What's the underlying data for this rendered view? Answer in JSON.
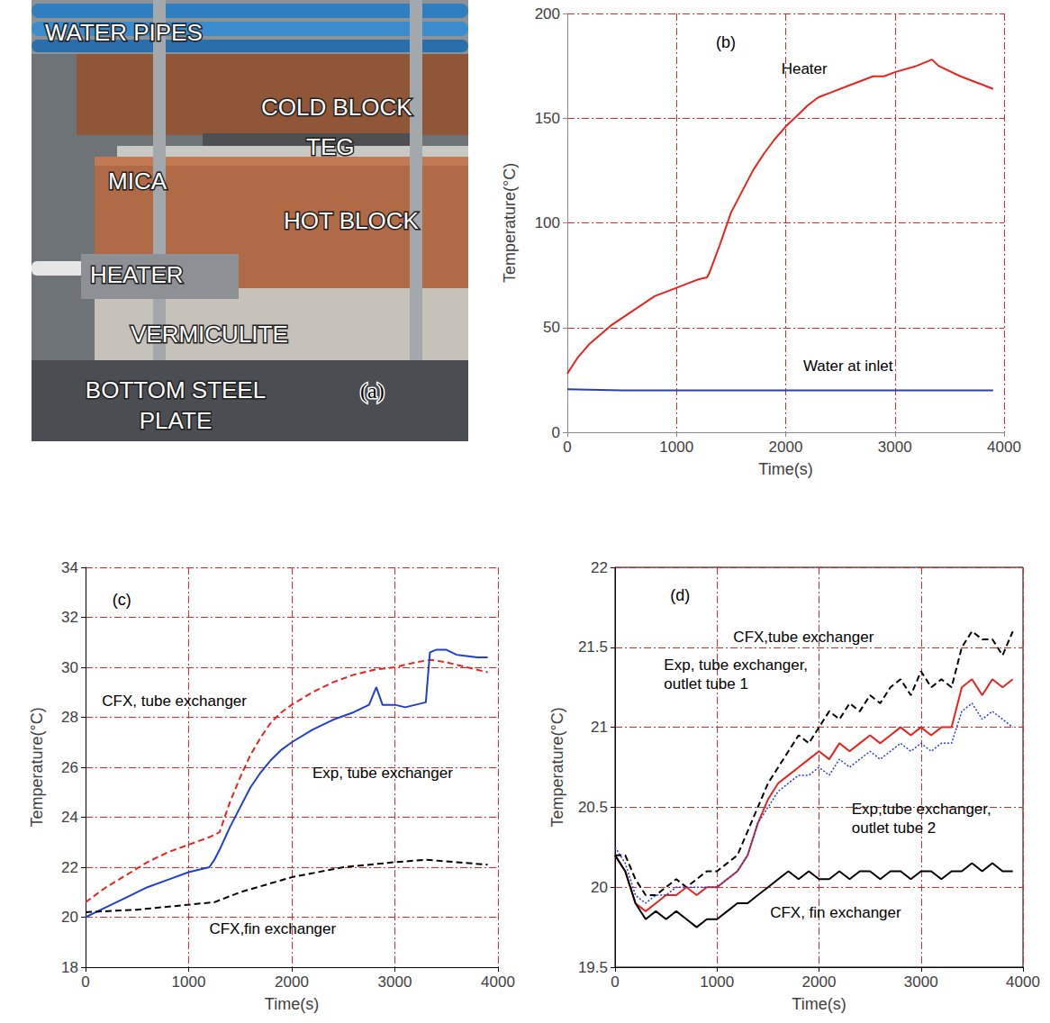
{
  "photo": {
    "panel": "(a)",
    "labels": [
      "WATER PIPES",
      "COLD BLOCK",
      "TEG",
      "MICA",
      "HOT BLOCK",
      "HEATER",
      "VERMICULITE",
      "BOTTOM STEEL PLATE"
    ]
  },
  "chart_data": [
    {
      "type": "line",
      "panel": "(b)",
      "x_label": "Time(s)",
      "y_label": "Temperature(°C)",
      "xlim": [
        0,
        4000
      ],
      "xticks": [
        0,
        1000,
        2000,
        3000,
        4000
      ],
      "ylim": [
        0,
        200
      ],
      "yticks": [
        0,
        50,
        100,
        150,
        200
      ],
      "grid": true,
      "series": [
        {
          "name": "Heater",
          "color": "#e8231f",
          "line_style": "solid",
          "marker": "none",
          "x": [
            0,
            100,
            200,
            400,
            600,
            800,
            1000,
            1100,
            1200,
            1280,
            1300,
            1400,
            1500,
            1600,
            1700,
            1800,
            1900,
            2000,
            2100,
            2200,
            2300,
            2400,
            2600,
            2800,
            2900,
            3000,
            3200,
            3340,
            3400,
            3600,
            3800,
            3900
          ],
          "values": [
            28,
            36,
            42,
            51,
            58,
            65,
            69,
            71,
            73,
            74,
            76,
            90,
            105,
            115,
            125,
            133,
            140,
            146,
            151,
            156,
            160,
            162,
            166,
            170,
            170,
            172,
            175,
            178,
            175,
            170,
            166,
            164
          ]
        },
        {
          "name": "Water at inlet",
          "color": "#1f3fd0",
          "line_style": "solid",
          "marker": "none",
          "x": [
            0,
            500,
            1000,
            1500,
            2000,
            2500,
            3000,
            3500,
            3900
          ],
          "values": [
            20.5,
            20,
            20,
            20,
            20,
            20,
            20,
            20,
            20
          ]
        }
      ]
    },
    {
      "type": "line",
      "panel": "(c)",
      "x_label": "Time(s)",
      "y_label": "Temperature(°C)",
      "xlim": [
        0,
        4000
      ],
      "xticks": [
        0,
        1000,
        2000,
        3000,
        4000
      ],
      "ylim": [
        18,
        34
      ],
      "yticks": [
        18,
        20,
        22,
        24,
        26,
        28,
        30,
        32,
        34
      ],
      "grid": true,
      "series": [
        {
          "name": "CFX, tube exchanger",
          "color": "#e8231f",
          "line_style": "dashed",
          "marker": "none",
          "x": [
            0,
            200,
            400,
            600,
            800,
            1000,
            1200,
            1300,
            1400,
            1500,
            1600,
            1700,
            1800,
            1900,
            2000,
            2200,
            2400,
            2600,
            2800,
            3000,
            3200,
            3350,
            3500,
            3700,
            3900
          ],
          "values": [
            20.6,
            21.2,
            21.7,
            22.2,
            22.6,
            22.9,
            23.2,
            23.4,
            24.6,
            25.6,
            26.5,
            27.2,
            27.8,
            28.2,
            28.5,
            29.0,
            29.4,
            29.7,
            29.9,
            30.0,
            30.2,
            30.3,
            30.2,
            30.0,
            29.8
          ]
        },
        {
          "name": "Exp, tube exchanger",
          "color": "#1f3fd0",
          "line_style": "solid",
          "marker": "none",
          "x": [
            0,
            200,
            400,
            600,
            800,
            1000,
            1200,
            1250,
            1300,
            1400,
            1500,
            1600,
            1700,
            1800,
            1900,
            2000,
            2200,
            2400,
            2600,
            2750,
            2820,
            2880,
            3000,
            3100,
            3300,
            3340,
            3400,
            3500,
            3600,
            3800,
            3900
          ],
          "values": [
            20.0,
            20.4,
            20.8,
            21.2,
            21.5,
            21.8,
            22.0,
            22.3,
            22.7,
            23.6,
            24.4,
            25.2,
            25.8,
            26.3,
            26.7,
            27.0,
            27.5,
            27.9,
            28.2,
            28.5,
            29.2,
            28.5,
            28.5,
            28.4,
            28.6,
            30.6,
            30.7,
            30.7,
            30.5,
            30.4,
            30.4
          ]
        },
        {
          "name": "CFX,fin exchanger",
          "color": "#000000",
          "line_style": "dashed",
          "marker": "none",
          "x": [
            0,
            500,
            1000,
            1250,
            1500,
            2000,
            2500,
            3000,
            3300,
            3600,
            3900
          ],
          "values": [
            20.2,
            20.3,
            20.5,
            20.6,
            21.0,
            21.6,
            22.0,
            22.2,
            22.3,
            22.2,
            22.1
          ]
        }
      ]
    },
    {
      "type": "line",
      "panel": "(d)",
      "x_label": "Time(s)",
      "y_label": "Temperature(°C)",
      "xlim": [
        0,
        4000
      ],
      "xticks": [
        0,
        1000,
        2000,
        3000,
        4000
      ],
      "ylim": [
        19.5,
        22
      ],
      "yticks": [
        19.5,
        20,
        20.5,
        21,
        21.5,
        22
      ],
      "grid": true,
      "x": [
        0,
        100,
        200,
        300,
        400,
        500,
        600,
        700,
        800,
        900,
        1000,
        1100,
        1200,
        1300,
        1400,
        1500,
        1600,
        1700,
        1800,
        1900,
        2000,
        2100,
        2200,
        2300,
        2400,
        2500,
        2600,
        2700,
        2800,
        2900,
        3000,
        3100,
        3200,
        3300,
        3400,
        3500,
        3600,
        3700,
        3800,
        3900
      ],
      "series": [
        {
          "name": "CFX,tube exchanger",
          "color": "#000000",
          "line_style": "dashed",
          "marker": "none",
          "values": [
            20.2,
            20.2,
            20.05,
            19.95,
            19.95,
            20.0,
            20.05,
            20.0,
            20.05,
            20.1,
            20.1,
            20.15,
            20.2,
            20.35,
            20.5,
            20.65,
            20.75,
            20.85,
            20.95,
            20.9,
            21.0,
            21.1,
            21.05,
            21.15,
            21.1,
            21.2,
            21.15,
            21.25,
            21.3,
            21.2,
            21.35,
            21.25,
            21.3,
            21.25,
            21.5,
            21.6,
            21.55,
            21.55,
            21.45,
            21.6
          ]
        },
        {
          "name": "Exp, tube exchanger, outlet tube 1",
          "color": "#e8231f",
          "line_style": "solid",
          "marker": "none",
          "values": [
            20.2,
            20.1,
            19.9,
            19.85,
            19.9,
            19.95,
            19.95,
            20.0,
            19.95,
            20.0,
            20.0,
            20.05,
            20.1,
            20.2,
            20.4,
            20.55,
            20.65,
            20.7,
            20.75,
            20.8,
            20.85,
            20.8,
            20.9,
            20.85,
            20.9,
            20.95,
            20.9,
            20.95,
            21.0,
            20.95,
            21.0,
            20.95,
            21.0,
            21.0,
            21.25,
            21.3,
            21.2,
            21.3,
            21.25,
            21.3
          ]
        },
        {
          "name": "Exp,tube exchanger, outlet tube 2",
          "color": "#1f3fd0",
          "line_style": "dotted",
          "marker": "none",
          "values": [
            20.25,
            20.15,
            19.95,
            19.9,
            19.95,
            19.95,
            20.0,
            20.0,
            20.0,
            20.0,
            20.0,
            20.05,
            20.1,
            20.2,
            20.4,
            20.5,
            20.6,
            20.65,
            20.7,
            20.7,
            20.75,
            20.7,
            20.8,
            20.75,
            20.8,
            20.85,
            20.8,
            20.85,
            20.9,
            20.85,
            20.9,
            20.85,
            20.9,
            20.9,
            21.1,
            21.15,
            21.05,
            21.1,
            21.05,
            21.0
          ]
        },
        {
          "name": "CFX, fin exchanger",
          "color": "#000000",
          "line_style": "solid",
          "marker": "none",
          "values": [
            20.2,
            20.1,
            19.9,
            19.8,
            19.85,
            19.8,
            19.85,
            19.8,
            19.75,
            19.8,
            19.8,
            19.85,
            19.9,
            19.9,
            19.95,
            20.0,
            20.05,
            20.1,
            20.05,
            20.1,
            20.05,
            20.05,
            20.1,
            20.05,
            20.1,
            20.1,
            20.05,
            20.1,
            20.1,
            20.05,
            20.1,
            20.1,
            20.05,
            20.1,
            20.1,
            20.15,
            20.1,
            20.15,
            20.1,
            20.1
          ]
        }
      ]
    }
  ]
}
